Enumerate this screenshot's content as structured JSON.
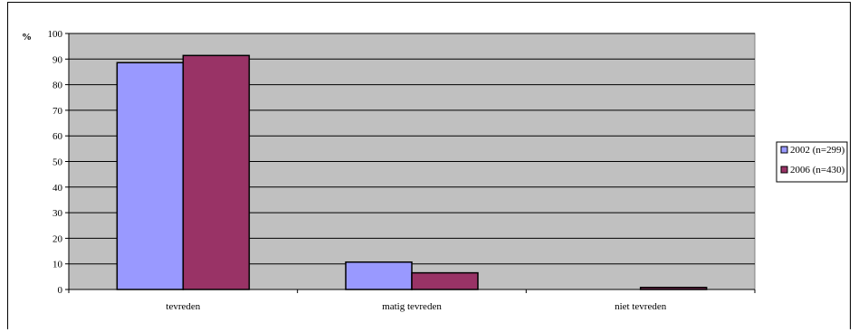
{
  "chart_data": {
    "type": "bar",
    "title": "",
    "xlabel": "",
    "ylabel": "%",
    "ylim": [
      0,
      100
    ],
    "yticks": [
      0,
      10,
      20,
      30,
      40,
      50,
      60,
      70,
      80,
      90,
      100
    ],
    "categories": [
      "tevreden",
      "matig tevreden",
      "niet tevreden"
    ],
    "series": [
      {
        "name": "2002 (n=299)",
        "values": [
          88.6,
          10.7,
          0
        ],
        "color": "#9999FF"
      },
      {
        "name": "2006 (n=430)",
        "values": [
          91.4,
          6.5,
          0.8
        ],
        "color": "#993366"
      }
    ],
    "plot_background": "#C0C0C0",
    "grid": true,
    "legend_position": "right"
  }
}
